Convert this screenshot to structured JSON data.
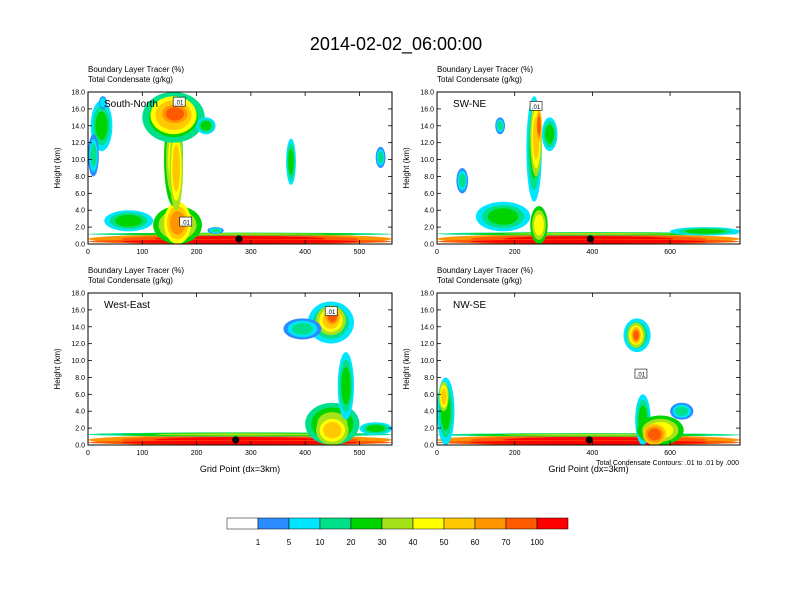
{
  "figure": {
    "title": "2014-02-02_06:00:00",
    "footnote": "Total Condensate Contours: .01 to .01 by .000"
  },
  "colorbar": {
    "colors": [
      "#ffffff",
      "#2a8cff",
      "#00e5ff",
      "#00e08a",
      "#00d400",
      "#a6e21a",
      "#ffff00",
      "#ffc800",
      "#ff9600",
      "#ff5a00",
      "#ff0000"
    ],
    "labels": [
      "1",
      "5",
      "10",
      "20",
      "30",
      "40",
      "50",
      "60",
      "70",
      "100"
    ]
  },
  "chart_data": [
    {
      "type": "heatmap",
      "panel": "South-North",
      "field_label_1": "Boundary Layer Tracer   (%)",
      "field_label_2": "Total Condensate   (g/kg)",
      "xlim": [
        0,
        560
      ],
      "ylim": [
        0,
        18
      ],
      "xticks": [
        "0",
        "100",
        "200",
        "300",
        "400",
        "500"
      ],
      "xtick_values": [
        0,
        100,
        200,
        300,
        400,
        500
      ],
      "yticks": [
        "0.0",
        "2.0",
        "4.0",
        "6.0",
        "8.0",
        "10.0",
        "12.0",
        "14.0",
        "16.0",
        "18.0"
      ],
      "ylabel": "Height (km)",
      "xlabel": "",
      "marker_x": 278,
      "contour_labels": [
        {
          "text": ".01",
          "x": 168,
          "y": 16.8
        },
        {
          "text": ".01",
          "x": 180,
          "y": 2.6
        }
      ],
      "blobs": [
        {
          "x": 0,
          "w": 560,
          "y": 0,
          "h": 1.2,
          "lvl": 10
        },
        {
          "x": 0,
          "w": 560,
          "y": 0,
          "h": 0.6,
          "lvl": 11
        },
        {
          "x": 0,
          "w": 560,
          "y": 1.0,
          "h": 0.35,
          "lvl": 5
        },
        {
          "x": 120,
          "w": 90,
          "y": 0,
          "h": 4.5,
          "lvl": 6
        },
        {
          "x": 140,
          "w": 50,
          "y": 0,
          "h": 5.0,
          "lvl": 8
        },
        {
          "x": 140,
          "w": 35,
          "y": 4.5,
          "h": 11.0,
          "lvl": 6
        },
        {
          "x": 150,
          "w": 25,
          "y": 4,
          "h": 10.0,
          "lvl": 7
        },
        {
          "x": 100,
          "w": 115,
          "y": 12,
          "h": 6.0,
          "lvl": 5
        },
        {
          "x": 115,
          "w": 85,
          "y": 13,
          "h": 4.5,
          "lvl": 8
        },
        {
          "x": 130,
          "w": 60,
          "y": 14,
          "h": 2.8,
          "lvl": 9
        },
        {
          "x": 200,
          "w": 35,
          "y": 13,
          "h": 2.0,
          "lvl": 4
        },
        {
          "x": 5,
          "w": 40,
          "y": 11,
          "h": 6.0,
          "lvl": 4
        },
        {
          "x": 0,
          "w": 20,
          "y": 8,
          "h": 5,
          "lvl": 3
        },
        {
          "x": 20,
          "w": 15,
          "y": 16,
          "h": 1.5,
          "lvl": 2
        },
        {
          "x": 365,
          "w": 18,
          "y": 7,
          "h": 5.5,
          "lvl": 4
        },
        {
          "x": 530,
          "w": 18,
          "y": 9,
          "h": 2.5,
          "lvl": 3
        },
        {
          "x": 30,
          "w": 90,
          "y": 1.5,
          "h": 2.5,
          "lvl": 4
        },
        {
          "x": 220,
          "w": 30,
          "y": 1.2,
          "h": 0.8,
          "lvl": 3
        }
      ]
    },
    {
      "type": "heatmap",
      "panel": "SW-NE",
      "field_label_1": "Boundary Layer Tracer   (%)",
      "field_label_2": "Total Condensate   (g/kg)",
      "xlim": [
        0,
        780
      ],
      "ylim": [
        0,
        18
      ],
      "xticks": [
        "0",
        "200",
        "400",
        "600"
      ],
      "xtick_values": [
        0,
        200,
        400,
        600
      ],
      "yticks": [
        "0.0",
        "2.0",
        "4.0",
        "6.0",
        "8.0",
        "10.0",
        "12.0",
        "14.0",
        "16.0",
        "18.0"
      ],
      "ylabel": "Height (km)",
      "xlabel": "",
      "marker_x": 395,
      "contour_labels": [
        {
          "text": ".01",
          "x": 255,
          "y": 16.3
        }
      ],
      "blobs": [
        {
          "x": 0,
          "w": 780,
          "y": 0,
          "h": 1.2,
          "lvl": 10
        },
        {
          "x": 0,
          "w": 780,
          "y": 0,
          "h": 0.6,
          "lvl": 11
        },
        {
          "x": 0,
          "w": 780,
          "y": 1.0,
          "h": 0.4,
          "lvl": 5
        },
        {
          "x": 240,
          "w": 45,
          "y": 0,
          "h": 4.5,
          "lvl": 6
        },
        {
          "x": 230,
          "w": 40,
          "y": 5,
          "h": 12.5,
          "lvl": 4
        },
        {
          "x": 240,
          "w": 30,
          "y": 8,
          "h": 9.0,
          "lvl": 7
        },
        {
          "x": 255,
          "w": 15,
          "y": 12,
          "h": 4.0,
          "lvl": 9
        },
        {
          "x": 270,
          "w": 40,
          "y": 11,
          "h": 4.0,
          "lvl": 4
        },
        {
          "x": 150,
          "w": 25,
          "y": 13,
          "h": 2.0,
          "lvl": 3
        },
        {
          "x": 50,
          "w": 30,
          "y": 6,
          "h": 3.0,
          "lvl": 3
        },
        {
          "x": 100,
          "w": 140,
          "y": 1.5,
          "h": 3.5,
          "lvl": 4
        },
        {
          "x": 600,
          "w": 180,
          "y": 1.0,
          "h": 1.0,
          "lvl": 4
        }
      ]
    },
    {
      "type": "heatmap",
      "panel": "West-East",
      "field_label_1": "Boundary Layer Tracer   (%)",
      "field_label_2": "Total Condensate   (g/kg)",
      "xlim": [
        0,
        560
      ],
      "ylim": [
        0,
        18
      ],
      "xticks": [
        "0",
        "100",
        "200",
        "300",
        "400",
        "500"
      ],
      "xtick_values": [
        0,
        100,
        200,
        300,
        400,
        500
      ],
      "yticks": [
        "0.0",
        "2.0",
        "4.0",
        "6.0",
        "8.0",
        "10.0",
        "12.0",
        "14.0",
        "16.0",
        "18.0"
      ],
      "ylabel": "Height (km)",
      "xlabel": "Grid Point (dx=3km)",
      "marker_x": 272,
      "contour_labels": [
        {
          "text": ".01",
          "x": 448,
          "y": 15.8
        }
      ],
      "blobs": [
        {
          "x": 0,
          "w": 560,
          "y": 0,
          "h": 1.2,
          "lvl": 10
        },
        {
          "x": 0,
          "w": 560,
          "y": 0,
          "h": 0.6,
          "lvl": 11
        },
        {
          "x": 0,
          "w": 560,
          "y": 1.0,
          "h": 0.5,
          "lvl": 5
        },
        {
          "x": 400,
          "w": 100,
          "y": 0,
          "h": 5.0,
          "lvl": 5
        },
        {
          "x": 420,
          "w": 60,
          "y": 0,
          "h": 3.5,
          "lvl": 7
        },
        {
          "x": 460,
          "w": 30,
          "y": 3,
          "h": 8.0,
          "lvl": 4
        },
        {
          "x": 405,
          "w": 85,
          "y": 12,
          "h": 5.0,
          "lvl": 4
        },
        {
          "x": 420,
          "w": 55,
          "y": 13,
          "h": 3.5,
          "lvl": 7
        },
        {
          "x": 435,
          "w": 30,
          "y": 14,
          "h": 2.5,
          "lvl": 9
        },
        {
          "x": 360,
          "w": 70,
          "y": 12.5,
          "h": 2.5,
          "lvl": 3
        },
        {
          "x": 500,
          "w": 60,
          "y": 1.2,
          "h": 1.5,
          "lvl": 4
        }
      ]
    },
    {
      "type": "heatmap",
      "panel": "NW-SE",
      "field_label_1": "Boundary Layer Tracer   (%)",
      "field_label_2": "Total Condensate   (g/kg)",
      "xlim": [
        0,
        780
      ],
      "ylim": [
        0,
        18
      ],
      "xticks": [
        "0",
        "200",
        "400",
        "600"
      ],
      "xtick_values": [
        0,
        200,
        400,
        600
      ],
      "yticks": [
        "0.0",
        "2.0",
        "4.0",
        "6.0",
        "8.0",
        "10.0",
        "12.0",
        "14.0",
        "16.0",
        "18.0"
      ],
      "ylabel": "Height (km)",
      "xlabel": "Grid Point (dx=3km)",
      "marker_x": 392,
      "contour_labels": [
        {
          "text": ".01",
          "x": 525,
          "y": 8.4
        }
      ],
      "blobs": [
        {
          "x": 0,
          "w": 780,
          "y": 0,
          "h": 1.2,
          "lvl": 10
        },
        {
          "x": 0,
          "w": 780,
          "y": 0,
          "h": 0.6,
          "lvl": 11
        },
        {
          "x": 0,
          "w": 780,
          "y": 1.0,
          "h": 0.4,
          "lvl": 5
        },
        {
          "x": 0,
          "w": 45,
          "y": 0,
          "h": 8.0,
          "lvl": 4
        },
        {
          "x": 5,
          "w": 25,
          "y": 4,
          "h": 3.5,
          "lvl": 7
        },
        {
          "x": 480,
          "w": 70,
          "y": 11,
          "h": 4.0,
          "lvl": 4
        },
        {
          "x": 490,
          "w": 45,
          "y": 11.5,
          "h": 3.0,
          "lvl": 7
        },
        {
          "x": 500,
          "w": 25,
          "y": 12,
          "h": 2.0,
          "lvl": 9
        },
        {
          "x": 510,
          "w": 40,
          "y": 0,
          "h": 6.0,
          "lvl": 4
        },
        {
          "x": 515,
          "w": 120,
          "y": 0,
          "h": 3.5,
          "lvl": 6
        },
        {
          "x": 530,
          "w": 60,
          "y": 0,
          "h": 2.5,
          "lvl": 9
        },
        {
          "x": 600,
          "w": 60,
          "y": 3,
          "h": 2.0,
          "lvl": 3
        }
      ]
    }
  ]
}
